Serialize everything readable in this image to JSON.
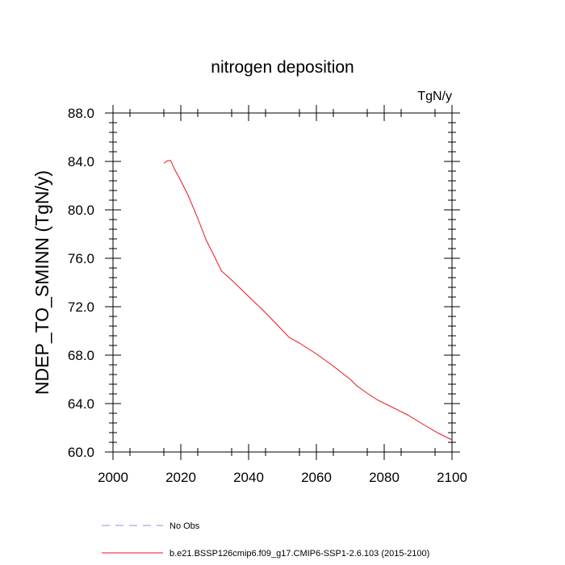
{
  "chart_data": {
    "type": "line",
    "title": "nitrogen deposition",
    "units": "TgN/y",
    "ylabel": "NDEP_TO_SMINN  (TgN/y)",
    "xlabel": "",
    "xlim": [
      2000,
      2100
    ],
    "ylim": [
      60,
      88
    ],
    "x_ticks": [
      2000,
      2020,
      2040,
      2060,
      2080,
      2100
    ],
    "x_tick_labels": [
      "2000",
      "2020",
      "2040",
      "2060",
      "2080",
      "2100"
    ],
    "y_ticks": [
      60,
      64,
      68,
      72,
      76,
      80,
      84,
      88
    ],
    "y_tick_labels": [
      "60.0",
      "64.0",
      "68.0",
      "72.0",
      "76.0",
      "80.0",
      "84.0",
      "88.0"
    ],
    "series": [
      {
        "name": "b.e21.BSSP126cmip6.f09_g17.CMIP6-SSP1-2.6.103 (2015-2100)",
        "color": "#e8141b",
        "style": "solid",
        "x": [
          2015,
          2016,
          2017,
          2018,
          2020,
          2022,
          2025,
          2027.5,
          2030,
          2032,
          2035,
          2040,
          2045,
          2050,
          2052,
          2055,
          2060,
          2064,
          2067,
          2070,
          2072,
          2075,
          2078,
          2082,
          2087,
          2092,
          2096,
          2100
        ],
        "values": [
          83.85,
          84.05,
          84.08,
          83.45,
          82.4,
          81.3,
          79.3,
          77.5,
          76.1,
          74.95,
          74.2,
          72.85,
          71.5,
          70.05,
          69.45,
          69.0,
          68.1,
          67.3,
          66.65,
          66.0,
          65.45,
          64.85,
          64.3,
          63.75,
          63.05,
          62.2,
          61.55,
          61.0
        ]
      },
      {
        "name": "No Obs",
        "color": "#8f8fe8",
        "style": "dashed",
        "x": [],
        "values": []
      }
    ],
    "legend": "bottom"
  }
}
